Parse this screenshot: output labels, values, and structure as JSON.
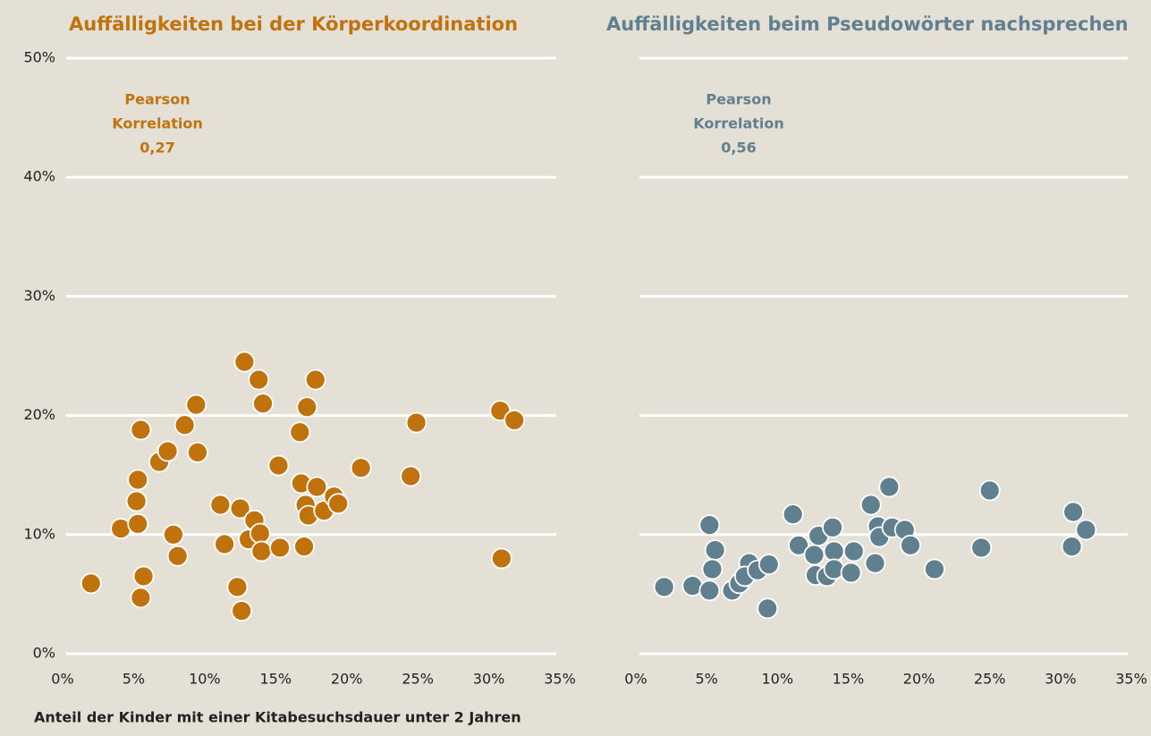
{
  "chart_data": [
    {
      "type": "scatter",
      "title": "Auffälligkeiten bei der Körperkoordination",
      "annotation": [
        "Pearson",
        "Korrelation",
        "0,27"
      ],
      "xlabel": "Anteil der Kinder mit einer Kitabesuchsdauer unter 2 Jahren",
      "color": "#c0720c",
      "grid": true,
      "ytick_labels": true,
      "xlim": [
        0,
        35
      ],
      "ylim": [
        0,
        50
      ],
      "xticks": [
        {
          "value": 0,
          "label": "0%"
        },
        {
          "value": 5,
          "label": "5%"
        },
        {
          "value": 10,
          "label": "10%"
        },
        {
          "value": 15,
          "label": "15%"
        },
        {
          "value": 20,
          "label": "20%"
        },
        {
          "value": 25,
          "label": "25%"
        },
        {
          "value": 30,
          "label": "30%"
        },
        {
          "value": 35,
          "label": "35%"
        }
      ],
      "yticks": [
        {
          "value": 0,
          "label": "0%"
        },
        {
          "value": 10,
          "label": "10%"
        },
        {
          "value": 20,
          "label": "20%"
        },
        {
          "value": 30,
          "label": "30%"
        },
        {
          "value": 40,
          "label": "40%"
        },
        {
          "value": 50,
          "label": "50%"
        }
      ],
      "x": [
        2.0,
        4.1,
        5.5,
        5.3,
        5.2,
        5.3,
        5.7,
        5.5,
        6.8,
        7.4,
        7.8,
        8.1,
        8.6,
        9.4,
        9.5,
        11.1,
        11.4,
        12.3,
        12.5,
        12.6,
        12.8,
        13.1,
        13.5,
        13.8,
        13.9,
        14.0,
        14.1,
        15.2,
        15.3,
        16.7,
        16.8,
        17.0,
        17.1,
        17.2,
        17.3,
        17.8,
        17.9,
        18.4,
        19.1,
        19.4,
        21.0,
        24.5,
        24.9,
        30.8,
        31.8,
        30.9
      ],
      "y": [
        5.9,
        10.5,
        18.8,
        14.6,
        12.8,
        10.9,
        6.5,
        4.7,
        16.1,
        17.0,
        10.0,
        8.2,
        19.2,
        20.9,
        16.9,
        12.5,
        9.2,
        5.6,
        12.2,
        3.6,
        24.5,
        9.6,
        11.2,
        23.0,
        10.1,
        8.6,
        21.0,
        15.8,
        8.9,
        18.6,
        14.3,
        9.0,
        12.5,
        20.7,
        11.6,
        23.0,
        14.0,
        12.0,
        13.2,
        12.6,
        15.6,
        14.9,
        19.4,
        20.4,
        19.6,
        8.0
      ]
    },
    {
      "type": "scatter",
      "title": "Auffälligkeiten beim Pseudowörter nachsprechen",
      "annotation": [
        "Pearson",
        "Korrelation",
        "0,56"
      ],
      "color": "#61808f",
      "grid": true,
      "ytick_labels": false,
      "xlim": [
        0,
        35
      ],
      "ylim": [
        0,
        50
      ],
      "xticks": [
        {
          "value": 0,
          "label": "0%"
        },
        {
          "value": 5,
          "label": "5%"
        },
        {
          "value": 10,
          "label": "10%"
        },
        {
          "value": 15,
          "label": "15%"
        },
        {
          "value": 20,
          "label": "20%"
        },
        {
          "value": 25,
          "label": "25%"
        },
        {
          "value": 30,
          "label": "30%"
        },
        {
          "value": 35,
          "label": "35%"
        }
      ],
      "yticks": [
        0,
        10,
        20,
        30,
        40,
        50
      ],
      "x": [
        2.0,
        4.0,
        5.2,
        5.6,
        5.4,
        5.2,
        6.8,
        7.3,
        8.0,
        7.7,
        8.6,
        9.4,
        9.3,
        11.1,
        11.5,
        12.6,
        12.7,
        12.9,
        13.5,
        13.9,
        14.0,
        14.0,
        15.2,
        15.4,
        16.6,
        16.9,
        17.1,
        17.2,
        17.9,
        18.1,
        19.0,
        19.4,
        21.1,
        24.4,
        25.0,
        30.8,
        30.9,
        31.8
      ],
      "y": [
        5.6,
        5.7,
        10.8,
        8.7,
        7.1,
        5.3,
        5.3,
        5.9,
        7.6,
        6.5,
        7.0,
        7.5,
        3.8,
        11.7,
        9.1,
        8.3,
        6.6,
        9.9,
        6.5,
        10.6,
        8.6,
        7.1,
        6.8,
        8.6,
        12.5,
        7.6,
        10.7,
        9.8,
        14.0,
        10.6,
        10.4,
        9.1,
        7.1,
        8.9,
        13.7,
        9.0,
        11.9,
        10.4
      ]
    }
  ]
}
